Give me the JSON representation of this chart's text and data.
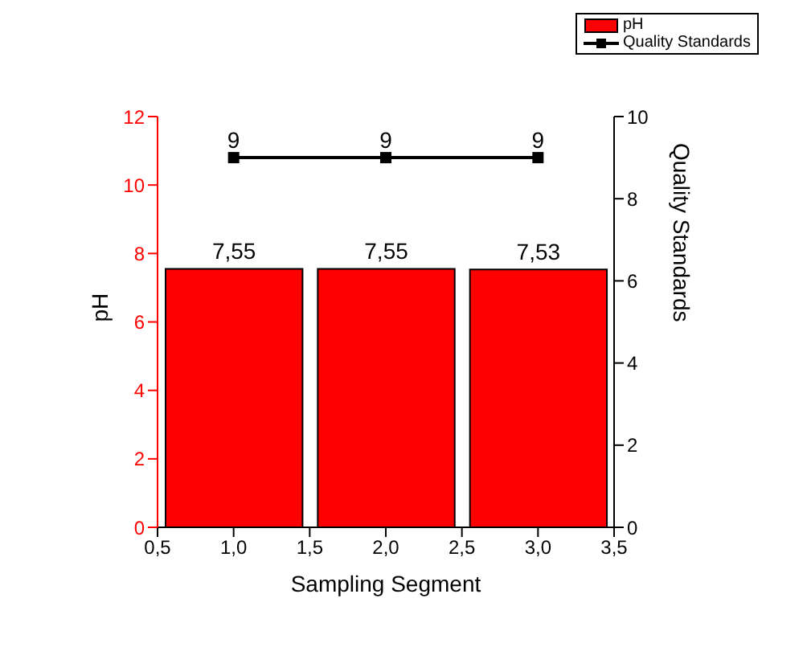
{
  "chart_data": {
    "type": "bar",
    "xlabel": "Sampling Segment",
    "ylabel": "pH",
    "y2label": "Quality Standards",
    "x": [
      1,
      2,
      3
    ],
    "xlim": [
      0.5,
      3.5
    ],
    "xticks": [
      {
        "value": 0.5,
        "label": "0,5"
      },
      {
        "value": 1,
        "label": "1,0"
      },
      {
        "value": 1.5,
        "label": "1,5"
      },
      {
        "value": 2,
        "label": "2,0"
      },
      {
        "value": 2.5,
        "label": "2,5"
      },
      {
        "value": 3,
        "label": "3,0"
      },
      {
        "value": 3.5,
        "label": "3,5"
      }
    ],
    "ylim": [
      0,
      12
    ],
    "yticks": [
      0,
      2,
      4,
      6,
      8,
      10,
      12
    ],
    "y2lim": [
      0,
      10
    ],
    "y2ticks": [
      0,
      2,
      4,
      6,
      8,
      10
    ],
    "series": [
      {
        "name": "pH",
        "color": "#ff0000",
        "values": [
          7.55,
          7.55,
          7.53
        ],
        "value_labels": [
          "7,55",
          "7,55",
          "7,53"
        ]
      },
      {
        "type": "line",
        "name": "Quality Standards",
        "color": "#000000",
        "axis": "y2",
        "values": [
          9,
          9,
          9
        ],
        "value_labels": [
          "9",
          "9",
          "9"
        ]
      }
    ],
    "marker": "square",
    "legend": "top right",
    "grid": false
  }
}
